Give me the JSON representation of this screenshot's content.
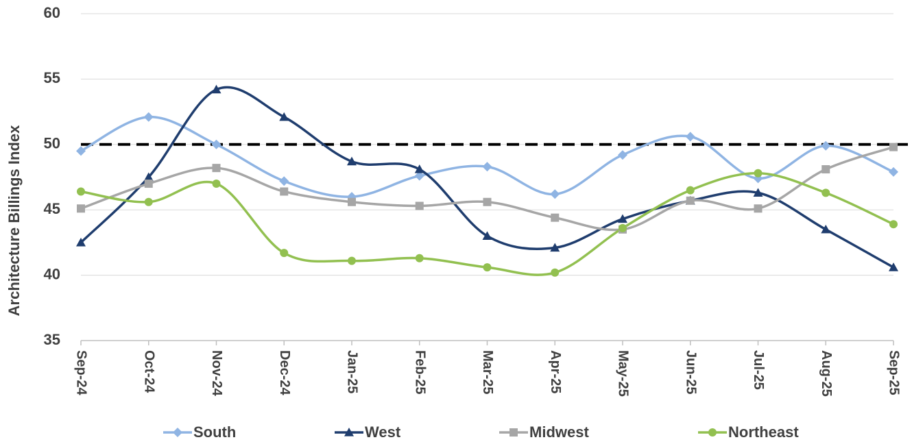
{
  "chart_data": {
    "type": "line",
    "smooth": true,
    "y_label": "Architecture Billings Index",
    "categories": [
      "Sep-24",
      "Oct-24",
      "Nov-24",
      "Dec-24",
      "Jan-25",
      "Feb-25",
      "Mar-25",
      "Apr-25",
      "May-25",
      "Jun-25",
      "Jul-25",
      "Aug-25",
      "Sep-25"
    ],
    "series": [
      {
        "name": "South",
        "color": "#8fb4e3",
        "marker": "diamond",
        "values": [
          49.5,
          52.1,
          50.0,
          47.2,
          46.0,
          47.6,
          48.3,
          46.2,
          49.2,
          50.6,
          47.4,
          49.9,
          47.9
        ]
      },
      {
        "name": "West",
        "color": "#1f3d6e",
        "marker": "triangle",
        "values": [
          42.5,
          47.5,
          54.2,
          52.1,
          48.7,
          48.1,
          43.0,
          42.1,
          44.3,
          45.7,
          46.3,
          43.5,
          40.6
        ]
      },
      {
        "name": "Midwest",
        "color": "#a6a6a6",
        "marker": "square",
        "values": [
          45.1,
          47.0,
          48.2,
          46.4,
          45.6,
          45.3,
          45.6,
          44.4,
          43.5,
          45.7,
          45.1,
          48.1,
          49.8
        ]
      },
      {
        "name": "Northeast",
        "color": "#92c050",
        "marker": "circle",
        "values": [
          46.4,
          45.6,
          47.0,
          41.7,
          41.1,
          41.3,
          40.6,
          40.2,
          43.6,
          46.5,
          47.8,
          46.3,
          43.9
        ]
      }
    ],
    "reference_line": 50,
    "ylim": [
      35,
      60
    ],
    "yticks": [
      35,
      40,
      45,
      50,
      55,
      60
    ],
    "grid": true,
    "legend": "bottom"
  }
}
